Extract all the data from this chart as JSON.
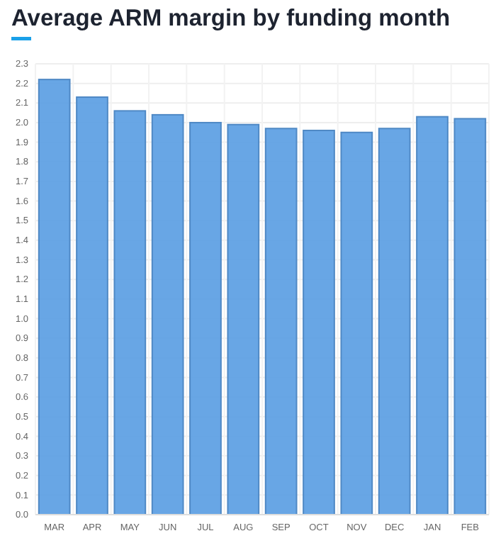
{
  "chart_data": {
    "type": "bar",
    "title": "Average ARM margin by funding month",
    "categories": [
      "MAR",
      "APR",
      "MAY",
      "JUN",
      "JUL",
      "AUG",
      "SEP",
      "OCT",
      "NOV",
      "DEC",
      "JAN",
      "FEB"
    ],
    "values": [
      2.22,
      2.13,
      2.06,
      2.04,
      2.0,
      1.99,
      1.97,
      1.96,
      1.95,
      1.97,
      2.03,
      2.02
    ],
    "color": "#5b9ee3",
    "ylim": [
      0,
      2.3
    ],
    "yticks": [
      {
        "value": 0,
        "label": "0.0"
      },
      {
        "value": 0.1,
        "label": "0.1"
      },
      {
        "value": 0.2,
        "label": "0.2"
      },
      {
        "value": 0.3,
        "label": "0.3"
      },
      {
        "value": 0.4,
        "label": "0.4"
      },
      {
        "value": 0.5,
        "label": "0.5"
      },
      {
        "value": 0.6,
        "label": "0.6"
      },
      {
        "value": 0.7,
        "label": "0.7"
      },
      {
        "value": 0.8,
        "label": "0.8"
      },
      {
        "value": 0.9,
        "label": "0.9"
      },
      {
        "value": 1,
        "label": "1.0"
      },
      {
        "value": 1.1,
        "label": "1.1"
      },
      {
        "value": 1.2,
        "label": "1.2"
      },
      {
        "value": 1.3,
        "label": "1.3"
      },
      {
        "value": 1.4,
        "label": "1.4"
      },
      {
        "value": 1.5,
        "label": "1.5"
      },
      {
        "value": 1.6,
        "label": "1.6"
      },
      {
        "value": 1.7,
        "label": "1.7"
      },
      {
        "value": 1.8,
        "label": "1.8"
      },
      {
        "value": 1.9,
        "label": "1.9"
      },
      {
        "value": 2,
        "label": "2.0"
      },
      {
        "value": 2.1,
        "label": "2.1"
      },
      {
        "value": 2.2,
        "label": "2.2"
      },
      {
        "value": 2.3,
        "label": "2.3"
      }
    ],
    "grid": true
  }
}
